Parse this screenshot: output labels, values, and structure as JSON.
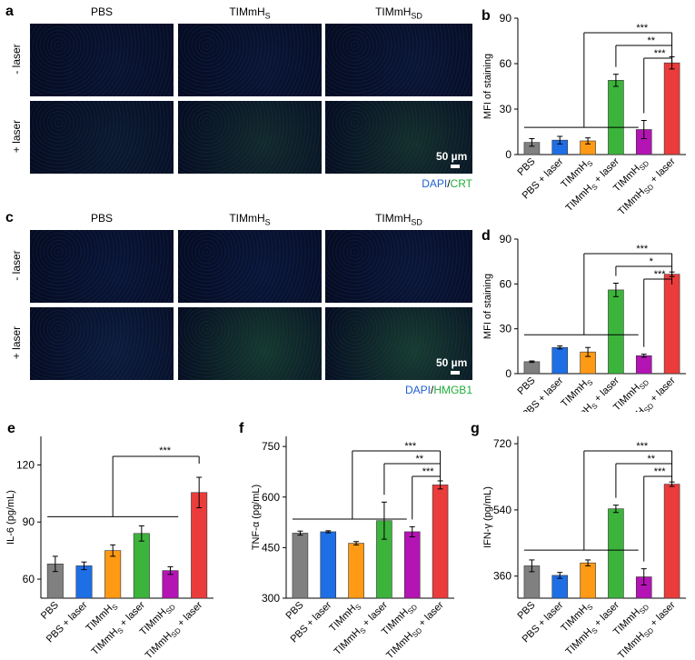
{
  "panels": {
    "a": {
      "letter": "a",
      "columns": [
        "PBS",
        "TIMmH",
        "TIMmH"
      ],
      "col_subs": [
        "",
        "S",
        "SD"
      ],
      "rows": [
        "- laser",
        "+ laser"
      ],
      "scale": "50 µm",
      "legend": {
        "a": "DAPI",
        "sep": "/",
        "b": "CRT"
      },
      "tint": [
        [
          "#0a1430",
          "#0a1533",
          "#0b1634"
        ],
        [
          "#0c1a2e",
          "#122a2a",
          "#14302a"
        ]
      ],
      "colors": {
        "dapi": "#1f5fd0",
        "stain": "#1fae3a"
      }
    },
    "c": {
      "letter": "c",
      "columns": [
        "PBS",
        "TIMmH",
        "TIMmH"
      ],
      "col_subs": [
        "",
        "S",
        "SD"
      ],
      "rows": [
        "- laser",
        "+ laser"
      ],
      "scale": "50 µm",
      "legend": {
        "a": "DAPI",
        "sep": "/",
        "b": "HMGB1"
      },
      "tint": [
        [
          "#0a1536",
          "#0a1638",
          "#0b1638"
        ],
        [
          "#0d1c3c",
          "#163a2c",
          "#183d2e"
        ]
      ],
      "colors": {
        "dapi": "#1f5fd0",
        "stain": "#1fae3a"
      }
    }
  },
  "group_labels": [
    {
      "main": "PBS",
      "sub": "",
      "tail": ""
    },
    {
      "main": "PBS + laser",
      "sub": "",
      "tail": ""
    },
    {
      "main": "TIMmH",
      "sub": "S",
      "tail": ""
    },
    {
      "main": "TIMmH",
      "sub": "S",
      "tail": " + laser"
    },
    {
      "main": "TIMmH",
      "sub": "SD",
      "tail": ""
    },
    {
      "main": "TIMmH",
      "sub": "SD",
      "tail": " + laser"
    }
  ],
  "bar_colors": [
    "#808080",
    "#1e6fe6",
    "#ff9a14",
    "#3cb43c",
    "#b414b4",
    "#eb3c3c"
  ],
  "chart_data": [
    {
      "id": "b",
      "letter": "b",
      "type": "bar",
      "ylabel": "MFI of staining",
      "ylim": [
        0,
        90
      ],
      "yticks": [
        0,
        30,
        60,
        90
      ],
      "values": [
        8,
        9.5,
        9,
        49,
        16.5,
        60.5
      ],
      "errors": [
        2.5,
        2.5,
        2,
        4,
        6,
        4
      ],
      "significance": [
        "***",
        "**",
        "***"
      ]
    },
    {
      "id": "d",
      "letter": "d",
      "type": "bar",
      "ylabel": "MFI of staining",
      "ylim": [
        0,
        90
      ],
      "yticks": [
        0,
        30,
        60,
        90
      ],
      "values": [
        8,
        17.5,
        14.5,
        56,
        12,
        66.5
      ],
      "errors": [
        0.5,
        1,
        3,
        4.5,
        1,
        1.5
      ],
      "significance": [
        "***",
        "*",
        "***"
      ]
    },
    {
      "id": "e",
      "letter": "e",
      "type": "bar",
      "ylabel": "IL-6 (pg/mL)",
      "ylim": [
        50,
        135
      ],
      "yticks": [
        60,
        90,
        120
      ],
      "values": [
        68,
        67,
        75,
        84,
        64.5,
        105.5
      ],
      "errors": [
        4,
        2,
        3,
        4,
        2,
        8
      ],
      "significance": [
        "***"
      ]
    },
    {
      "id": "f",
      "letter": "f",
      "type": "bar",
      "ylabel": "TNF-α (pg/mL)",
      "ylim": [
        300,
        780
      ],
      "yticks": [
        300,
        450,
        600,
        750
      ],
      "values": [
        493,
        497,
        463,
        530,
        497,
        636
      ],
      "errors": [
        6,
        3,
        5,
        55,
        15,
        12
      ],
      "significance": [
        "***",
        "**",
        "***"
      ]
    },
    {
      "id": "g",
      "letter": "g",
      "type": "bar",
      "ylabel": "IFN-γ (pg/mL)",
      "ylim": [
        300,
        740
      ],
      "yticks": [
        360,
        540,
        720
      ],
      "values": [
        388,
        362,
        396,
        543,
        358,
        610
      ],
      "errors": [
        16,
        8,
        8,
        10,
        22,
        6
      ],
      "significance": [
        "***",
        "**",
        "***"
      ]
    }
  ]
}
